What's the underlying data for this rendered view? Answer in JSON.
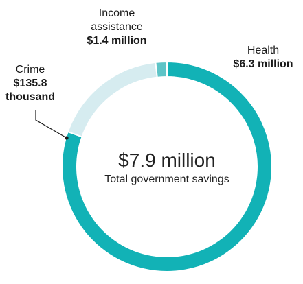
{
  "chart_data": {
    "type": "pie",
    "donut": true,
    "categories": [
      "Health",
      "Income assistance",
      "Crime"
    ],
    "values": [
      6.3,
      1.4,
      0.1358
    ],
    "value_labels": [
      "$6.3 million",
      "$1.4 million",
      "$135.8 thousand"
    ],
    "colors": [
      "#12b2b6",
      "#d6ecf0",
      "#5ec4c7"
    ],
    "center_value": "$7.9 million",
    "center_label": "Total government savings"
  },
  "labels": {
    "income": {
      "name_line1": "Income",
      "name_line2": "assistance",
      "value": "$1.4 million"
    },
    "health": {
      "name": "Health",
      "value": "$6.3 million"
    },
    "crime": {
      "name": "Crime",
      "value_line1": "$135.8",
      "value_line2": "thousand"
    }
  }
}
